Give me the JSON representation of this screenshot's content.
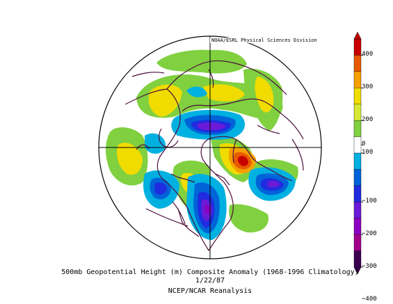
{
  "credit": "NOAA/ESRL Physical Sciences Division",
  "caption": {
    "line1": "500mb Geopotential Height (m) Composite Anomaly (1968-1996 Climatology)",
    "line2": "1/22/87",
    "line3": "NCEP/NCAR Reanalysis"
  },
  "colorbar": {
    "labels": [
      "400",
      "300",
      "200",
      "100",
      "0",
      "−100",
      "−200",
      "−300",
      "−400"
    ],
    "colors": [
      "#c80000",
      "#e85a00",
      "#f5a000",
      "#f0dc00",
      "#d6e834",
      "#80d040",
      "#ffffff",
      "#00b0e0",
      "#0064d8",
      "#1f2ce0",
      "#6b1ad8",
      "#8a00c0",
      "#a0008a",
      "#3c0050"
    ]
  },
  "map": {
    "projection": "north-polar-stereographic",
    "land_outline_color": "#4b0d3a",
    "boundary_color": "#000000"
  }
}
